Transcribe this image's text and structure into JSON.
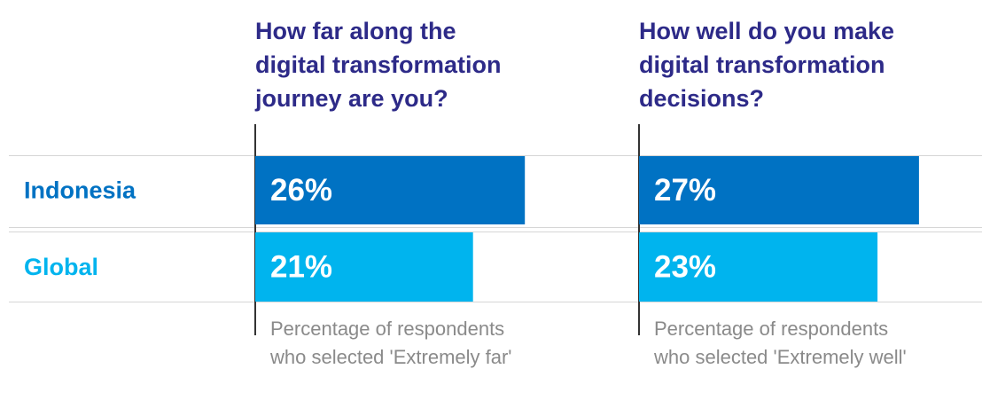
{
  "categories": [
    "Indonesia",
    "Global"
  ],
  "chart_data": [
    {
      "type": "bar",
      "orientation": "horizontal",
      "title": [
        "How far along the",
        "digital transformation",
        "journey are you?"
      ],
      "values": [
        26,
        21
      ],
      "value_labels": [
        "26%",
        "21%"
      ],
      "colors": [
        "#0072c3",
        "#00b4ee"
      ],
      "note": [
        "Percentage of respondents",
        "who selected 'Extremely far'"
      ]
    },
    {
      "type": "bar",
      "orientation": "horizontal",
      "title": [
        "How well do you make",
        "digital transformation",
        "decisions?"
      ],
      "values": [
        27,
        23
      ],
      "value_labels": [
        "27%",
        "23%"
      ],
      "colors": [
        "#0072c3",
        "#00b4ee"
      ],
      "note": [
        "Percentage of respondents",
        "who selected 'Extremely well'"
      ]
    }
  ]
}
